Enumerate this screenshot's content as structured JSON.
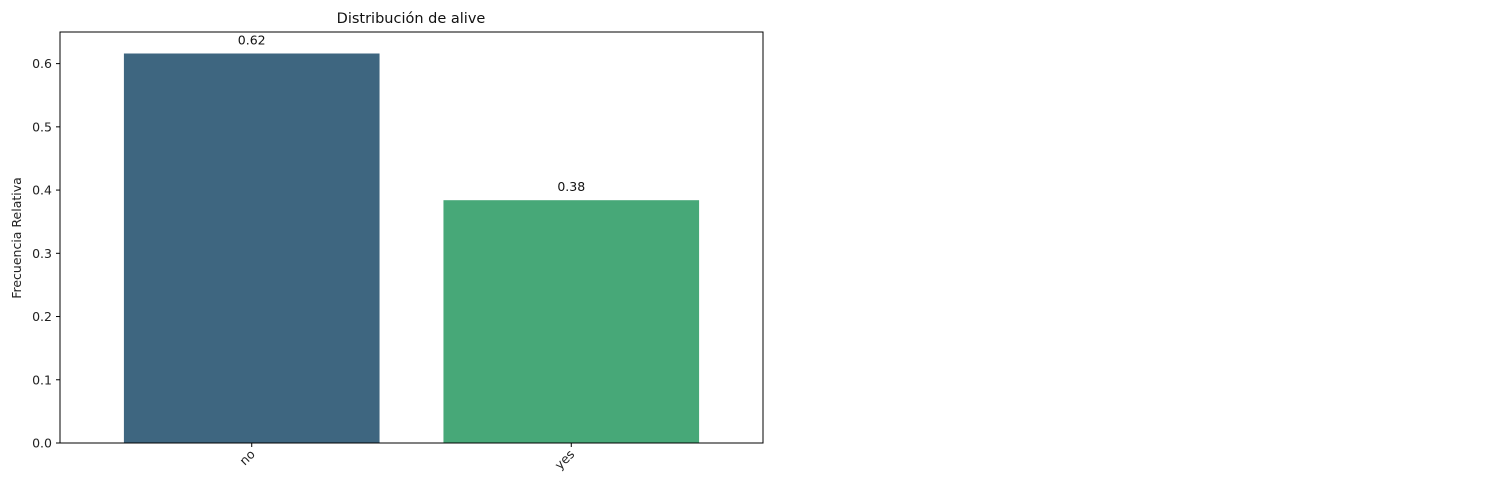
{
  "chart_data": {
    "type": "bar",
    "title": "Distribución de alive",
    "xlabel": "",
    "ylabel": "Frecuencia Relativa",
    "categories": [
      "no",
      "yes"
    ],
    "values": [
      0.616,
      0.384
    ],
    "data_labels": [
      "0.62",
      "0.38"
    ],
    "colors": [
      "#3e6680",
      "#47a878"
    ],
    "ylim": [
      0,
      0.65
    ],
    "yticks": [
      0.0,
      0.1,
      0.2,
      0.3,
      0.4,
      0.5,
      0.6
    ],
    "ytick_labels": [
      "0.0",
      "0.1",
      "0.2",
      "0.3",
      "0.4",
      "0.5",
      "0.6"
    ],
    "xtick_rotation": 45,
    "grid": false,
    "legend": false
  }
}
